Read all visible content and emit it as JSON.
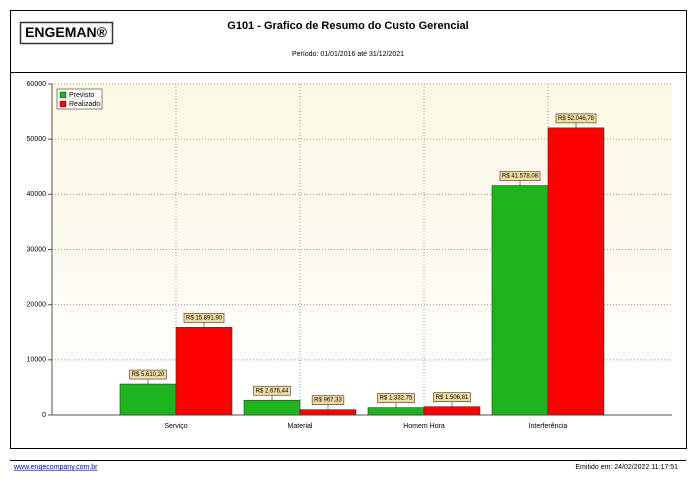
{
  "report": {
    "logo": "ENGEMAN®",
    "website": "www.engecompany.com.br",
    "issued": "Emitido em: 24/02/2022 11:17:51"
  },
  "chart_data": {
    "type": "bar",
    "title": "G101 - Grafico de Resumo do Custo Gerencial",
    "subtitle": "Período: 01/01/2016 até 31/12/2021",
    "categories": [
      "Serviço",
      "Material",
      "Homem Hora",
      "Interferência"
    ],
    "series": [
      {
        "name": "Previsto",
        "color": "#1eb41e",
        "values": [
          5610.2,
          2676.44,
          1332.75,
          41578.08
        ],
        "value_labels": [
          "R$ 5.610,20",
          "R$ 2.676,44",
          "R$ 1.332,75",
          "R$ 41.578,08"
        ]
      },
      {
        "name": "Realizado",
        "color": "#ff0000",
        "values": [
          15891.9,
          967.33,
          1506.81,
          52046.78
        ],
        "value_labels": [
          "R$ 15.891,90",
          "R$ 967,33",
          "R$ 1.506,81",
          "R$ 52.046,78"
        ]
      }
    ],
    "ylim": [
      0,
      60000
    ],
    "yticks": [
      0,
      10000,
      20000,
      30000,
      40000,
      50000,
      60000
    ],
    "grid": true,
    "legend": "top-left"
  }
}
